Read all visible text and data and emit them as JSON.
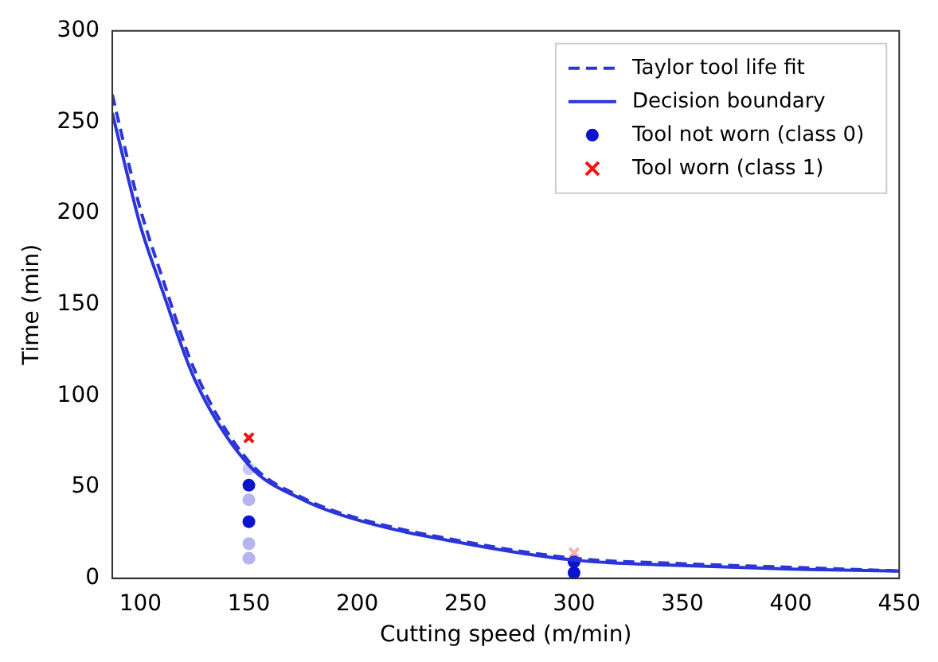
{
  "chart_data": {
    "type": "scatter",
    "xlabel": "Cutting speed (m/min)",
    "ylabel": "Time (min)",
    "xlim": [
      87,
      450
    ],
    "ylim": [
      0,
      300
    ],
    "xticks": [
      100,
      150,
      200,
      250,
      300,
      350,
      400,
      450
    ],
    "yticks": [
      0,
      50,
      100,
      150,
      200,
      250,
      300
    ],
    "grid": false,
    "legend": "top right",
    "series": [
      {
        "name": "Taylor tool life fit",
        "type": "line",
        "color": "#2b35d8",
        "line_style": "dashed",
        "marker": "none",
        "x": [
          87,
          95,
          100,
          110,
          125,
          150,
          175,
          200,
          250,
          300,
          350,
          400,
          450
        ],
        "values": [
          265,
          225,
          202,
          165,
          114,
          64,
          44,
          33,
          20,
          11,
          8,
          6,
          4
        ]
      },
      {
        "name": "Decision boundary",
        "type": "line",
        "color": "#2b35d8",
        "line_style": "solid",
        "marker": "none",
        "x": [
          87,
          95,
          100,
          110,
          125,
          150,
          175,
          200,
          250,
          300,
          350,
          400,
          450
        ],
        "values": [
          255,
          216,
          193,
          158,
          109,
          62,
          43,
          32,
          19,
          10,
          7,
          5,
          4
        ]
      },
      {
        "name": "Tool not worn (class 0)",
        "color": "#0a14cc",
        "marker": "circle",
        "x": [
          150,
          150,
          150,
          150,
          150,
          150,
          300,
          300
        ],
        "values": [
          60,
          51,
          43,
          31,
          19,
          11,
          9,
          3
        ],
        "colors": [
          "#c8c8f4",
          "#0a14cc",
          "#b4b4f0",
          "#0a14cc",
          "#b4b4f0",
          "#b4b4f0",
          "#0a14cc",
          "#0a14cc"
        ]
      },
      {
        "name": "Tool worn (class 1)",
        "color": "#ff1010",
        "marker": "cross",
        "x": [
          150,
          300
        ],
        "values": [
          77,
          14
        ],
        "colors": [
          "#ff1010",
          "#f8b0b0"
        ]
      }
    ]
  }
}
